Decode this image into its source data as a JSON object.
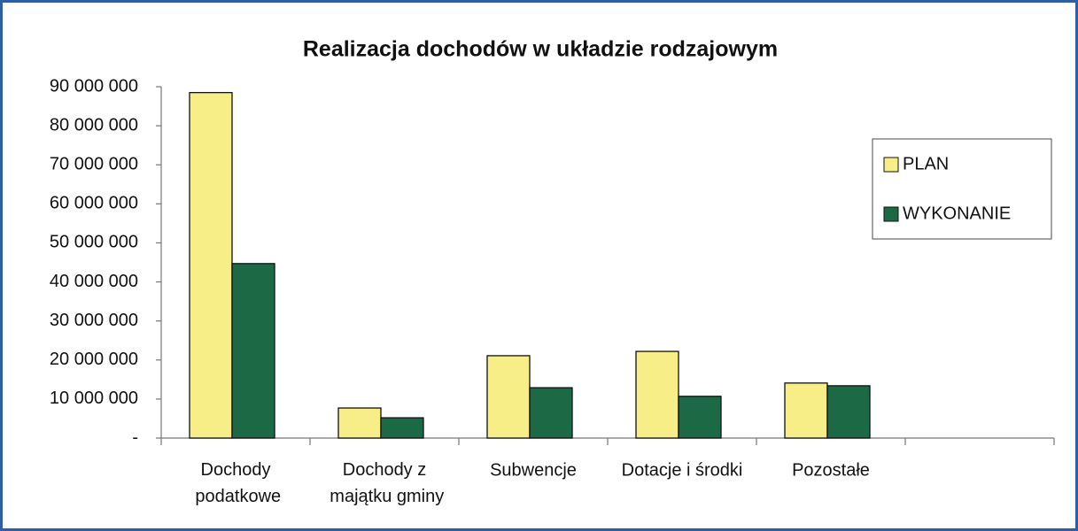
{
  "chart_data": {
    "type": "bar",
    "title": "Realizacja dochodów w układzie rodzajowym",
    "categories": [
      "Dochody podatkowe",
      "Dochody z majątku gminy",
      "Subwencje",
      "Dotacje i środki",
      "Pozostałe",
      null
    ],
    "series": [
      {
        "name": "PLAN",
        "color": "#f7ee88",
        "values": [
          88500000,
          7700000,
          21100000,
          22200000,
          14100000,
          null
        ]
      },
      {
        "name": "WYKONANIE",
        "color": "#1b6a45",
        "values": [
          44700000,
          5200000,
          12900000,
          10700000,
          13400000,
          null
        ]
      }
    ],
    "ylim": [
      0,
      90000000
    ],
    "yticks": [
      {
        "value": 0,
        "label": "-"
      },
      {
        "value": 10000000,
        "label": "10 000 000"
      },
      {
        "value": 20000000,
        "label": "20 000 000"
      },
      {
        "value": 30000000,
        "label": "30 000 000"
      },
      {
        "value": 40000000,
        "label": "40 000 000"
      },
      {
        "value": 50000000,
        "label": "50 000 000"
      },
      {
        "value": 60000000,
        "label": "60 000 000"
      },
      {
        "value": 70000000,
        "label": "70 000 000"
      },
      {
        "value": 80000000,
        "label": "80 000 000"
      },
      {
        "value": 90000000,
        "label": "90 000 000"
      }
    ],
    "grid": false,
    "legend": "right"
  }
}
